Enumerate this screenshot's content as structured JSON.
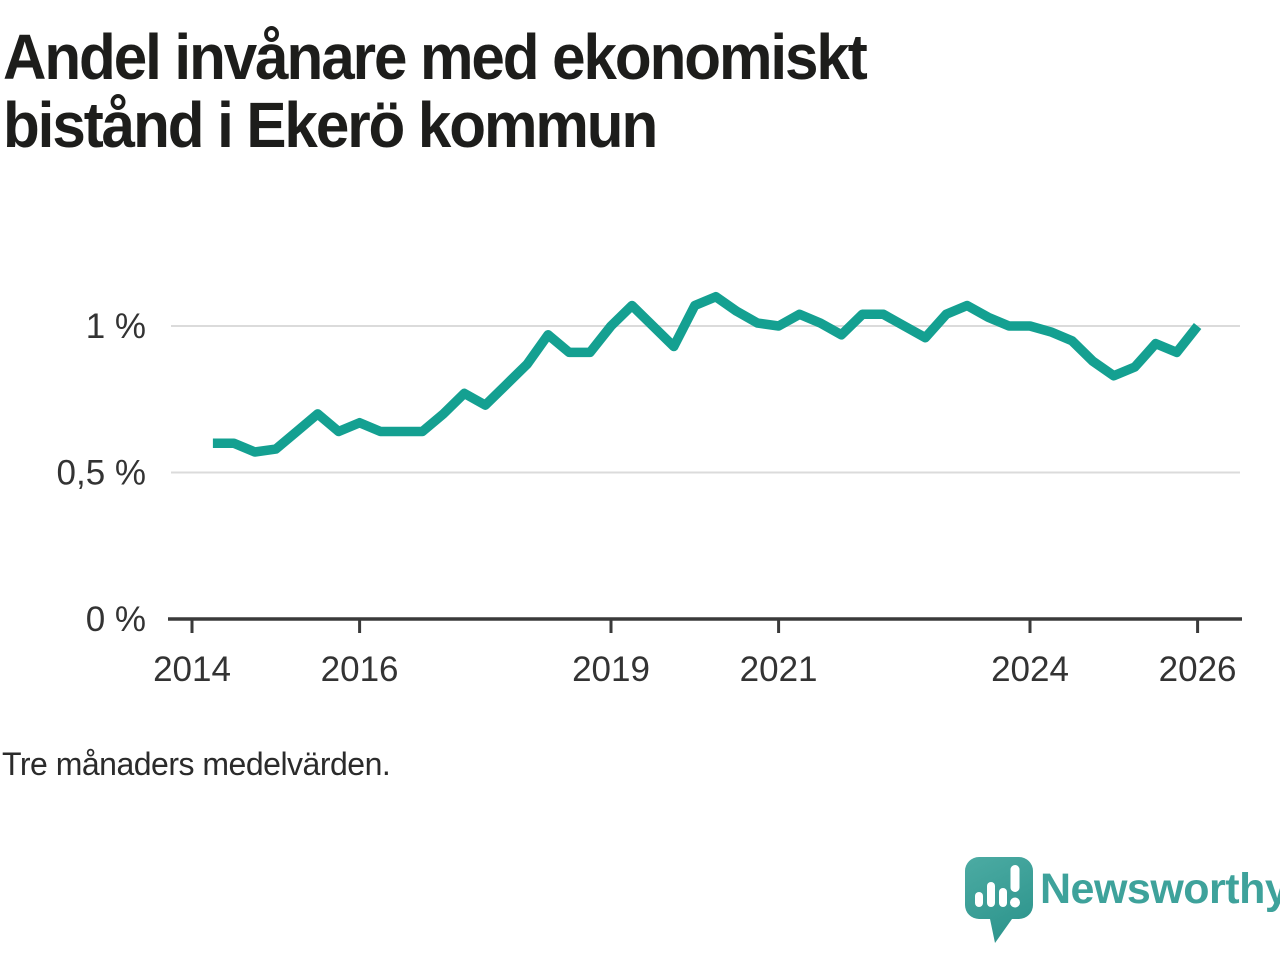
{
  "title": "Andel invånare med ekonomiskt bistånd i Ekerö kommun",
  "caption": "Tre månaders medelvärden.",
  "logo": {
    "text": "Newsworthy"
  },
  "colors": {
    "line": "#14A091",
    "grid": "#DBDBDB",
    "axis": "#3A3A3A",
    "tick_text": "#333333",
    "title_text": "#1D1D1B",
    "logo_teal": "#3EA29B",
    "logo_bubble_top": "#4CABA3",
    "logo_bubble_bottom": "#2F968E"
  },
  "chart_data": {
    "type": "line",
    "title": "Andel invånare med ekonomiskt bistånd i Ekerö kommun",
    "subtitle": "Tre månaders medelvärden.",
    "unit": "%",
    "grid": true,
    "legend": "none",
    "xlabel": "",
    "ylabel": "%",
    "x_range": [
      2013.75,
      2026.55
    ],
    "y_range": [
      0,
      1.18
    ],
    "y_ticks": [
      {
        "value": 1,
        "label": "1 %"
      },
      {
        "value": 0.5,
        "label": "0,5 %"
      },
      {
        "value": 0,
        "label": "0 %"
      }
    ],
    "x_ticks": [
      {
        "value": 2014,
        "label": "2014"
      },
      {
        "value": 2016,
        "label": "2016"
      },
      {
        "value": 2019,
        "label": "2019"
      },
      {
        "value": 2021,
        "label": "2021"
      },
      {
        "value": 2024,
        "label": "2024"
      },
      {
        "value": 2026,
        "label": "2026"
      }
    ],
    "series": [
      {
        "name": "Ekerö kommun",
        "x": [
          2014.25,
          2014.5,
          2014.75,
          2015.0,
          2015.25,
          2015.5,
          2015.75,
          2016.0,
          2016.25,
          2016.5,
          2016.75,
          2017.0,
          2017.25,
          2017.5,
          2017.75,
          2018.0,
          2018.25,
          2018.5,
          2018.75,
          2019.0,
          2019.25,
          2019.5,
          2019.75,
          2020.0,
          2020.25,
          2020.5,
          2020.75,
          2021.0,
          2021.25,
          2021.5,
          2021.75,
          2022.0,
          2022.25,
          2022.5,
          2022.75,
          2023.0,
          2023.25,
          2023.5,
          2023.75,
          2024.0,
          2024.25,
          2024.5,
          2024.75,
          2025.0,
          2025.25,
          2025.5,
          2025.75,
          2026.0
        ],
        "values": [
          0.6,
          0.6,
          0.57,
          0.58,
          0.64,
          0.7,
          0.64,
          0.67,
          0.64,
          0.64,
          0.64,
          0.7,
          0.77,
          0.73,
          0.8,
          0.87,
          0.97,
          0.91,
          0.91,
          1.0,
          1.07,
          1.0,
          0.93,
          1.07,
          1.1,
          1.05,
          1.01,
          1.0,
          1.04,
          1.01,
          0.97,
          1.04,
          1.04,
          1.0,
          0.96,
          1.04,
          1.07,
          1.03,
          1.0,
          1.0,
          0.98,
          0.95,
          0.88,
          0.83,
          0.86,
          0.94,
          0.91,
          1.0
        ]
      }
    ]
  }
}
